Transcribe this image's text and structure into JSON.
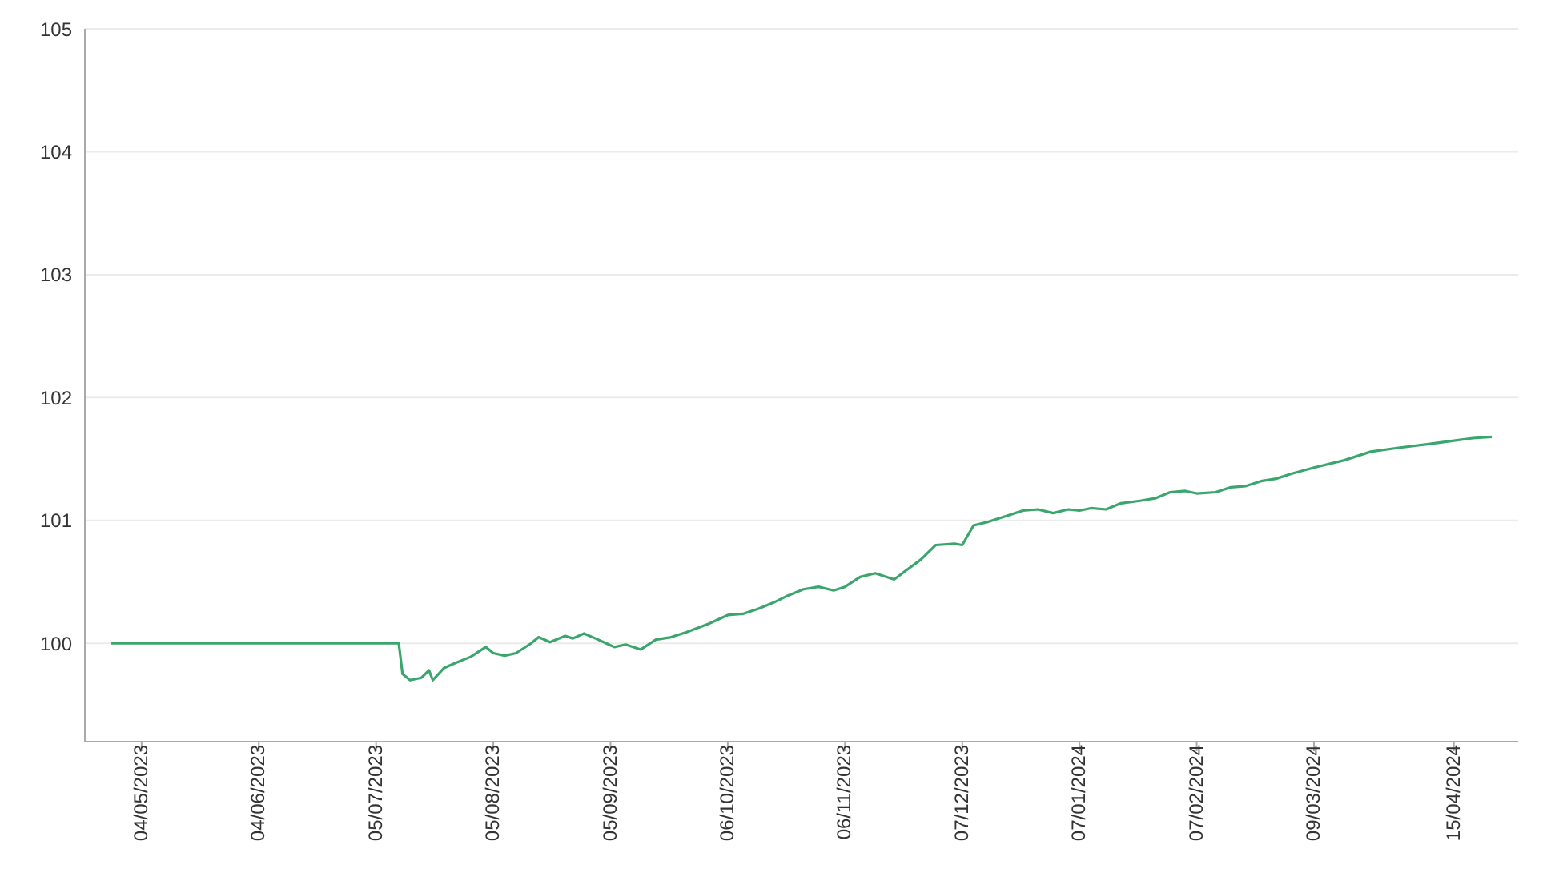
{
  "chart_data": {
    "type": "line",
    "x": [
      "2023-04-26",
      "2023-07-11",
      "2023-07-12",
      "2023-07-14",
      "2023-07-17",
      "2023-07-19",
      "2023-07-20",
      "2023-07-23",
      "2023-07-26",
      "2023-07-30",
      "2023-08-03",
      "2023-08-05",
      "2023-08-08",
      "2023-08-11",
      "2023-08-15",
      "2023-08-17",
      "2023-08-20",
      "2023-08-24",
      "2023-08-26",
      "2023-08-29",
      "2023-09-01",
      "2023-09-06",
      "2023-09-09",
      "2023-09-13",
      "2023-09-17",
      "2023-09-21",
      "2023-09-25",
      "2023-10-01",
      "2023-10-06",
      "2023-10-10",
      "2023-10-14",
      "2023-10-18",
      "2023-10-22",
      "2023-10-26",
      "2023-10-30",
      "2023-11-03",
      "2023-11-06",
      "2023-11-10",
      "2023-11-14",
      "2023-11-19",
      "2023-11-22",
      "2023-11-26",
      "2023-11-30",
      "2023-12-05",
      "2023-12-07",
      "2023-12-10",
      "2023-12-14",
      "2023-12-19",
      "2023-12-23",
      "2023-12-27",
      "2023-12-31",
      "2024-01-04",
      "2024-01-07",
      "2024-01-10",
      "2024-01-14",
      "2024-01-18",
      "2024-01-23",
      "2024-01-27",
      "2024-01-31",
      "2024-02-04",
      "2024-02-07",
      "2024-02-12",
      "2024-02-16",
      "2024-02-20",
      "2024-02-24",
      "2024-02-28",
      "2024-03-03",
      "2024-03-09",
      "2024-03-17",
      "2024-03-24",
      "2024-03-31",
      "2024-04-08",
      "2024-04-15",
      "2024-04-20",
      "2024-04-25"
    ],
    "series": [
      {
        "color": "#3ba56e",
        "values": [
          100,
          100,
          99.75,
          99.7,
          99.72,
          99.78,
          99.7,
          99.8,
          99.84,
          99.89,
          99.97,
          99.92,
          99.9,
          99.92,
          100,
          100.05,
          100.01,
          100.06,
          100.04,
          100.08,
          100.04,
          99.97,
          99.99,
          99.95,
          100.03,
          100.05,
          100.09,
          100.16,
          100.23,
          100.24,
          100.28,
          100.33,
          100.39,
          100.44,
          100.46,
          100.43,
          100.46,
          100.54,
          100.57,
          100.52,
          100.59,
          100.68,
          100.8,
          100.81,
          100.8,
          100.96,
          100.99,
          101.04,
          101.08,
          101.09,
          101.06,
          101.09,
          101.08,
          101.1,
          101.09,
          101.14,
          101.16,
          101.18,
          101.23,
          101.24,
          101.22,
          101.23,
          101.27,
          101.28,
          101.32,
          101.34,
          101.38,
          101.43,
          101.49,
          101.56,
          101.59,
          101.62,
          101.65,
          101.67,
          101.68
        ]
      }
    ],
    "xlim": [
      "2023-04-19",
      "2024-05-02"
    ],
    "xticks": [
      {
        "value": "2023-05-04",
        "label": "04/05/2023"
      },
      {
        "value": "2023-06-04",
        "label": "04/06/2023"
      },
      {
        "value": "2023-07-05",
        "label": "05/07/2023"
      },
      {
        "value": "2023-08-05",
        "label": "05/08/2023"
      },
      {
        "value": "2023-09-05",
        "label": "05/09/2023"
      },
      {
        "value": "2023-10-06",
        "label": "06/10/2023"
      },
      {
        "value": "2023-11-06",
        "label": "06/11/2023"
      },
      {
        "value": "2023-12-07",
        "label": "07/12/2023"
      },
      {
        "value": "2024-01-07",
        "label": "07/01/2024"
      },
      {
        "value": "2024-02-07",
        "label": "07/02/2024"
      },
      {
        "value": "2024-03-09",
        "label": "09/03/2024"
      },
      {
        "value": "2024-04-15",
        "label": "15/04/2024"
      }
    ],
    "ylim": [
      99.2,
      105
    ],
    "yticks": [
      100,
      101,
      102,
      103,
      104,
      105
    ],
    "grid": "y",
    "marker": "none",
    "line_style": "solid"
  }
}
